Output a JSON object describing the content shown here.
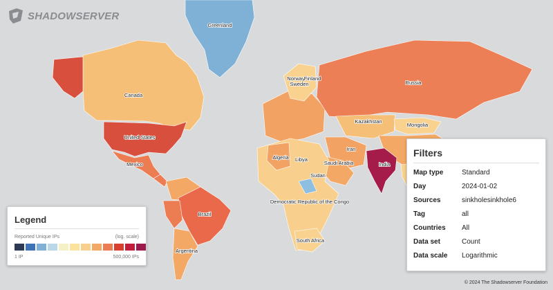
{
  "brand": {
    "name": "SHADOWSERVER"
  },
  "map": {
    "labels": {
      "greenland": "Greenland",
      "canada": "Canada",
      "united_states": "United States",
      "mexico": "Mexico",
      "brazil": "Brazil",
      "argentina": "Argentina",
      "norway": "Norway",
      "finland": "Finland",
      "sweden": "Sweden",
      "russia": "Russia",
      "kazakhstan": "Kazakhstan",
      "mongolia": "Mongolia",
      "iran": "Iran",
      "algeria": "Algeria",
      "libya": "Libya",
      "saudi_arabia": "Saudi Arabia",
      "sudan": "Sudan",
      "drc": "Democratic Republic of the Congo",
      "south_africa": "South Africa",
      "india": "India"
    },
    "country_colors": {
      "greenland": "#7fb0d5",
      "canada": "#f6bf78",
      "united_states": "#d84f3e",
      "alaska": "#d84f3e",
      "mexico": "#ec7c52",
      "brazil": "#e9694a",
      "argentina": "#f4a865",
      "russia": "#ec7f56",
      "india": "#a51c4a",
      "kazakhstan": "#f6bf78",
      "mongolia": "#f8d28e",
      "china": "#f4a865",
      "africa_base": "#f8cf8c",
      "europe_base": "#f2a262",
      "sudan": "#8fbfe0"
    }
  },
  "legend": {
    "title": "Legend",
    "subtitle": "Reported Unique IPs",
    "scale_label": "(log. scale)",
    "min_label": "1 IP",
    "max_label": "500,000 IPs",
    "colors": [
      "#2c3a56",
      "#3f73b8",
      "#7fb0d5",
      "#bcd8e8",
      "#f5f0c6",
      "#fbe39e",
      "#f8cf8c",
      "#f4a865",
      "#ec7c52",
      "#d83f2f",
      "#c21e3c",
      "#9c1b4c"
    ]
  },
  "filters": {
    "title": "Filters",
    "rows": [
      {
        "key": "Map type",
        "value": "Standard"
      },
      {
        "key": "Day",
        "value": "2024-01-02"
      },
      {
        "key": "Sources",
        "value": "sinkholesinkhole6"
      },
      {
        "key": "Tag",
        "value": "all"
      },
      {
        "key": "Countries",
        "value": "All"
      },
      {
        "key": "Data set",
        "value": "Count"
      },
      {
        "key": "Data scale",
        "value": "Logarithmic"
      }
    ]
  },
  "footer": {
    "copyright": "© 2024 The Shadowserver Foundation"
  }
}
